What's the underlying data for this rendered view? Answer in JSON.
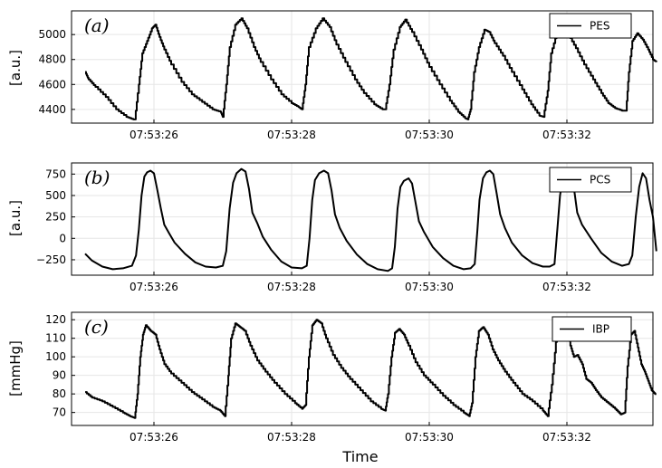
{
  "chart_data": {
    "type": "line",
    "x_label": "Time",
    "x_ticks": [
      "07:53:26",
      "07:53:28",
      "07:53:30",
      "07:53:32"
    ],
    "x_range": [
      "07:53:25",
      "07:53:33"
    ],
    "grid": true,
    "panels": [
      {
        "panel_label": "(a)",
        "ylabel": "[a.u.]",
        "y_ticks": [
          4400,
          4600,
          4800,
          5000
        ],
        "ylim": [
          4290,
          5190
        ],
        "legend": "PES",
        "legend_position": "top-right",
        "color": "#000000",
        "stepped": true,
        "points": [
          [
            0.0,
            4700
          ],
          [
            0.05,
            4640
          ],
          [
            0.15,
            4580
          ],
          [
            0.3,
            4500
          ],
          [
            0.45,
            4400
          ],
          [
            0.6,
            4340
          ],
          [
            0.7,
            4320
          ],
          [
            0.72,
            4320
          ],
          [
            0.78,
            4600
          ],
          [
            0.83,
            4850
          ],
          [
            0.9,
            4950
          ],
          [
            0.97,
            5050
          ],
          [
            1.02,
            5080
          ],
          [
            1.08,
            4980
          ],
          [
            1.15,
            4880
          ],
          [
            1.25,
            4760
          ],
          [
            1.4,
            4620
          ],
          [
            1.55,
            4520
          ],
          [
            1.7,
            4460
          ],
          [
            1.85,
            4400
          ],
          [
            1.97,
            4380
          ],
          [
            2.0,
            4340
          ],
          [
            2.05,
            4600
          ],
          [
            2.1,
            4900
          ],
          [
            2.18,
            5080
          ],
          [
            2.27,
            5130
          ],
          [
            2.35,
            5050
          ],
          [
            2.45,
            4900
          ],
          [
            2.55,
            4780
          ],
          [
            2.7,
            4640
          ],
          [
            2.85,
            4520
          ],
          [
            3.0,
            4450
          ],
          [
            3.1,
            4420
          ],
          [
            3.15,
            4400
          ],
          [
            3.2,
            4600
          ],
          [
            3.25,
            4900
          ],
          [
            3.35,
            5050
          ],
          [
            3.45,
            5130
          ],
          [
            3.55,
            5060
          ],
          [
            3.65,
            4920
          ],
          [
            3.78,
            4780
          ],
          [
            3.92,
            4640
          ],
          [
            4.05,
            4530
          ],
          [
            4.2,
            4440
          ],
          [
            4.32,
            4400
          ],
          [
            4.36,
            4400
          ],
          [
            4.42,
            4600
          ],
          [
            4.48,
            4880
          ],
          [
            4.57,
            5060
          ],
          [
            4.65,
            5120
          ],
          [
            4.75,
            5020
          ],
          [
            4.88,
            4880
          ],
          [
            5.0,
            4740
          ],
          [
            5.15,
            4600
          ],
          [
            5.3,
            4470
          ],
          [
            5.42,
            4380
          ],
          [
            5.52,
            4330
          ],
          [
            5.56,
            4320
          ],
          [
            5.6,
            4400
          ],
          [
            5.65,
            4700
          ],
          [
            5.72,
            4900
          ],
          [
            5.8,
            5040
          ],
          [
            5.87,
            5020
          ],
          [
            5.95,
            4930
          ],
          [
            6.07,
            4830
          ],
          [
            6.2,
            4700
          ],
          [
            6.35,
            4560
          ],
          [
            6.48,
            4440
          ],
          [
            6.6,
            4350
          ],
          [
            6.66,
            4340
          ],
          [
            6.72,
            4550
          ],
          [
            6.77,
            4850
          ],
          [
            6.85,
            5010
          ],
          [
            6.93,
            5090
          ],
          [
            7.02,
            5000
          ],
          [
            7.13,
            4890
          ],
          [
            7.25,
            4760
          ],
          [
            7.38,
            4640
          ],
          [
            7.5,
            4530
          ],
          [
            7.6,
            4450
          ],
          [
            7.7,
            4410
          ],
          [
            7.8,
            4390
          ],
          [
            7.86,
            4390
          ],
          [
            7.9,
            4700
          ],
          [
            7.95,
            4950
          ],
          [
            8.02,
            5010
          ],
          [
            8.1,
            4960
          ],
          [
            8.18,
            4880
          ],
          [
            8.25,
            4800
          ],
          [
            8.3,
            4780
          ]
        ]
      },
      {
        "panel_label": "(b)",
        "ylabel": "[a.u.]",
        "y_ticks": [
          -250,
          0,
          250,
          500,
          750
        ],
        "ylim": [
          -430,
          880
        ],
        "legend": "PCS",
        "legend_position": "top-right",
        "color": "#000000",
        "stepped": false,
        "points": [
          [
            0.0,
            -180
          ],
          [
            0.1,
            -260
          ],
          [
            0.25,
            -330
          ],
          [
            0.4,
            -360
          ],
          [
            0.55,
            -350
          ],
          [
            0.68,
            -320
          ],
          [
            0.74,
            -200
          ],
          [
            0.78,
            100
          ],
          [
            0.82,
            500
          ],
          [
            0.86,
            720
          ],
          [
            0.9,
            770
          ],
          [
            0.95,
            790
          ],
          [
            1.0,
            760
          ],
          [
            1.05,
            560
          ],
          [
            1.1,
            350
          ],
          [
            1.15,
            160
          ],
          [
            1.22,
            60
          ],
          [
            1.3,
            -50
          ],
          [
            1.45,
            -180
          ],
          [
            1.6,
            -280
          ],
          [
            1.75,
            -330
          ],
          [
            1.9,
            -340
          ],
          [
            2.0,
            -320
          ],
          [
            2.05,
            -150
          ],
          [
            2.1,
            350
          ],
          [
            2.15,
            650
          ],
          [
            2.2,
            760
          ],
          [
            2.27,
            810
          ],
          [
            2.33,
            780
          ],
          [
            2.38,
            580
          ],
          [
            2.43,
            300
          ],
          [
            2.5,
            180
          ],
          [
            2.58,
            20
          ],
          [
            2.7,
            -130
          ],
          [
            2.85,
            -270
          ],
          [
            3.0,
            -340
          ],
          [
            3.15,
            -350
          ],
          [
            3.22,
            -320
          ],
          [
            3.26,
            0
          ],
          [
            3.3,
            450
          ],
          [
            3.34,
            680
          ],
          [
            3.4,
            760
          ],
          [
            3.47,
            790
          ],
          [
            3.53,
            760
          ],
          [
            3.58,
            560
          ],
          [
            3.63,
            280
          ],
          [
            3.7,
            120
          ],
          [
            3.8,
            -30
          ],
          [
            3.95,
            -190
          ],
          [
            4.1,
            -300
          ],
          [
            4.25,
            -360
          ],
          [
            4.4,
            -380
          ],
          [
            4.46,
            -350
          ],
          [
            4.5,
            -100
          ],
          [
            4.54,
            350
          ],
          [
            4.58,
            600
          ],
          [
            4.63,
            670
          ],
          [
            4.7,
            700
          ],
          [
            4.75,
            640
          ],
          [
            4.8,
            420
          ],
          [
            4.85,
            200
          ],
          [
            4.92,
            80
          ],
          [
            5.05,
            -100
          ],
          [
            5.2,
            -230
          ],
          [
            5.35,
            -320
          ],
          [
            5.5,
            -360
          ],
          [
            5.6,
            -350
          ],
          [
            5.66,
            -300
          ],
          [
            5.7,
            100
          ],
          [
            5.73,
            450
          ],
          [
            5.78,
            700
          ],
          [
            5.83,
            770
          ],
          [
            5.88,
            790
          ],
          [
            5.93,
            750
          ],
          [
            5.98,
            520
          ],
          [
            6.03,
            280
          ],
          [
            6.1,
            120
          ],
          [
            6.2,
            -50
          ],
          [
            6.35,
            -200
          ],
          [
            6.5,
            -290
          ],
          [
            6.65,
            -330
          ],
          [
            6.75,
            -330
          ],
          [
            6.82,
            -300
          ],
          [
            6.86,
            100
          ],
          [
            6.9,
            500
          ],
          [
            6.95,
            760
          ],
          [
            7.0,
            800
          ],
          [
            7.05,
            780
          ],
          [
            7.1,
            600
          ],
          [
            7.15,
            300
          ],
          [
            7.22,
            160
          ],
          [
            7.35,
            0
          ],
          [
            7.5,
            -170
          ],
          [
            7.65,
            -270
          ],
          [
            7.8,
            -320
          ],
          [
            7.9,
            -300
          ],
          [
            7.95,
            -200
          ],
          [
            8.0,
            250
          ],
          [
            8.05,
            600
          ],
          [
            8.1,
            760
          ],
          [
            8.15,
            700
          ],
          [
            8.2,
            450
          ],
          [
            8.25,
            250
          ],
          [
            8.3,
            -150
          ]
        ]
      },
      {
        "panel_label": "(c)",
        "ylabel": "[mmHg]",
        "y_ticks": [
          70,
          80,
          90,
          100,
          110,
          120
        ],
        "ylim": [
          63,
          124
        ],
        "legend": "IBP",
        "legend_position": "top-right",
        "color": "#000000",
        "stepped": true,
        "points": [
          [
            0.0,
            81
          ],
          [
            0.1,
            78
          ],
          [
            0.25,
            76
          ],
          [
            0.4,
            73
          ],
          [
            0.55,
            70
          ],
          [
            0.65,
            68
          ],
          [
            0.72,
            67
          ],
          [
            0.76,
            80
          ],
          [
            0.8,
            100
          ],
          [
            0.84,
            112
          ],
          [
            0.88,
            117
          ],
          [
            0.95,
            114
          ],
          [
            1.02,
            112
          ],
          [
            1.08,
            104
          ],
          [
            1.15,
            96
          ],
          [
            1.25,
            91
          ],
          [
            1.4,
            86
          ],
          [
            1.55,
            81
          ],
          [
            1.7,
            77
          ],
          [
            1.85,
            73
          ],
          [
            1.96,
            71
          ],
          [
            2.03,
            68
          ],
          [
            2.08,
            90
          ],
          [
            2.12,
            110
          ],
          [
            2.18,
            118
          ],
          [
            2.25,
            116
          ],
          [
            2.32,
            114
          ],
          [
            2.4,
            106
          ],
          [
            2.5,
            98
          ],
          [
            2.62,
            92
          ],
          [
            2.75,
            86
          ],
          [
            2.9,
            80
          ],
          [
            3.05,
            75
          ],
          [
            3.15,
            72
          ],
          [
            3.2,
            74
          ],
          [
            3.25,
            100
          ],
          [
            3.3,
            117
          ],
          [
            3.36,
            120
          ],
          [
            3.43,
            118
          ],
          [
            3.5,
            110
          ],
          [
            3.6,
            101
          ],
          [
            3.72,
            94
          ],
          [
            3.85,
            88
          ],
          [
            4.0,
            82
          ],
          [
            4.15,
            76
          ],
          [
            4.3,
            72
          ],
          [
            4.36,
            71
          ],
          [
            4.4,
            80
          ],
          [
            4.45,
            100
          ],
          [
            4.5,
            113
          ],
          [
            4.56,
            115
          ],
          [
            4.63,
            112
          ],
          [
            4.7,
            106
          ],
          [
            4.8,
            97
          ],
          [
            4.92,
            90
          ],
          [
            5.05,
            85
          ],
          [
            5.2,
            79
          ],
          [
            5.35,
            74
          ],
          [
            5.5,
            70
          ],
          [
            5.58,
            68
          ],
          [
            5.62,
            75
          ],
          [
            5.67,
            100
          ],
          [
            5.72,
            114
          ],
          [
            5.78,
            116
          ],
          [
            5.85,
            112
          ],
          [
            5.92,
            104
          ],
          [
            6.0,
            98
          ],
          [
            6.1,
            92
          ],
          [
            6.22,
            86
          ],
          [
            6.35,
            80
          ],
          [
            6.5,
            76
          ],
          [
            6.65,
            71
          ],
          [
            6.72,
            68
          ],
          [
            6.78,
            85
          ],
          [
            6.84,
            108
          ],
          [
            6.9,
            119
          ],
          [
            6.95,
            114
          ],
          [
            7.0,
            116
          ],
          [
            7.05,
            106
          ],
          [
            7.1,
            100
          ],
          [
            7.15,
            101
          ],
          [
            7.22,
            96
          ],
          [
            7.28,
            88
          ],
          [
            7.35,
            86
          ],
          [
            7.42,
            82
          ],
          [
            7.5,
            78
          ],
          [
            7.6,
            75
          ],
          [
            7.7,
            72
          ],
          [
            7.78,
            69
          ],
          [
            7.84,
            70
          ],
          [
            7.88,
            95
          ],
          [
            7.93,
            112
          ],
          [
            7.98,
            114
          ],
          [
            8.03,
            105
          ],
          [
            8.08,
            96
          ],
          [
            8.13,
            92
          ],
          [
            8.18,
            87
          ],
          [
            8.23,
            82
          ],
          [
            8.28,
            80
          ],
          [
            8.3,
            80
          ]
        ]
      }
    ]
  }
}
